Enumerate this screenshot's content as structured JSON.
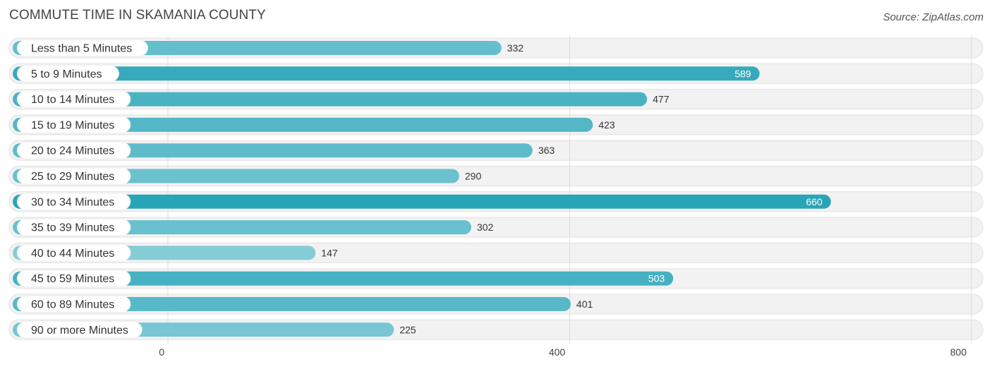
{
  "chart_data": {
    "type": "bar",
    "orientation": "horizontal",
    "title": "COMMUTE TIME IN SKAMANIA COUNTY",
    "source": "Source: ZipAtlas.com",
    "categories": [
      "Less than 5 Minutes",
      "5 to 9 Minutes",
      "10 to 14 Minutes",
      "15 to 19 Minutes",
      "20 to 24 Minutes",
      "25 to 29 Minutes",
      "30 to 34 Minutes",
      "35 to 39 Minutes",
      "40 to 44 Minutes",
      "45 to 59 Minutes",
      "60 to 89 Minutes",
      "90 or more Minutes"
    ],
    "values": [
      332,
      589,
      477,
      423,
      363,
      290,
      660,
      302,
      147,
      503,
      401,
      225
    ],
    "xlim": [
      0,
      800
    ],
    "xticks": [
      0,
      400,
      800
    ],
    "xlabel": "",
    "ylabel": "",
    "grid": true,
    "colors": {
      "bar_dark": "#29a5b8",
      "bar_light": "#8dd0da",
      "track": "#f2f2f2",
      "track_border": "#e0e0e0",
      "grid": "#dddddd"
    }
  }
}
